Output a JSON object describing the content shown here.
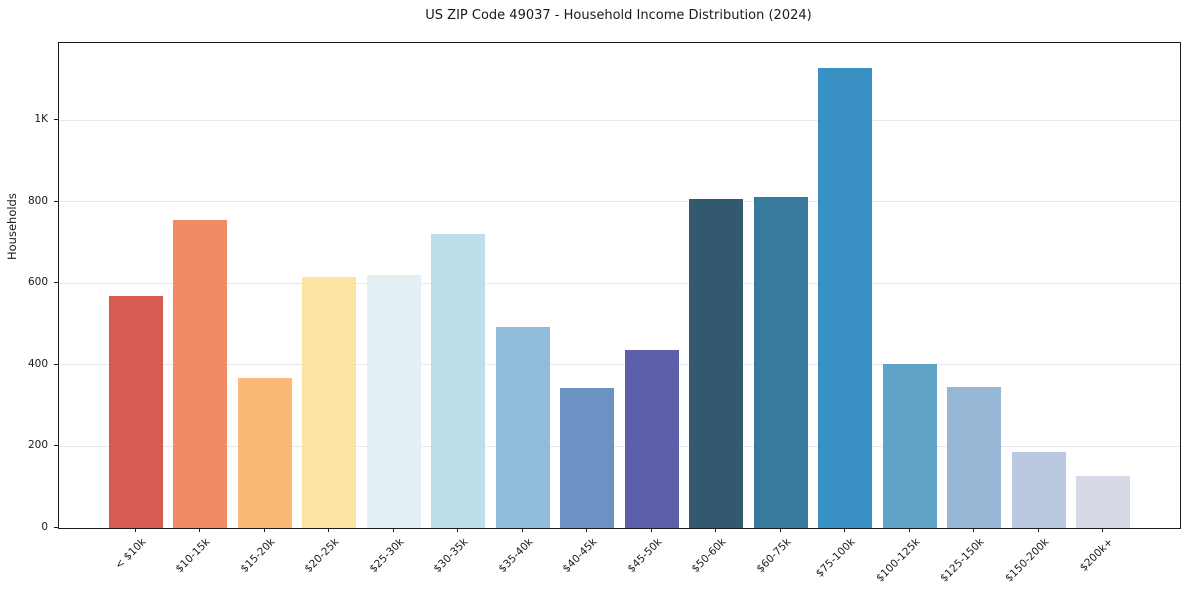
{
  "title": "US ZIP Code 49037 - Household Income Distribution (2024)",
  "ylabel": "Households",
  "chart_data": {
    "type": "bar",
    "title": "US ZIP Code 49037 - Household Income Distribution (2024)",
    "xlabel": "",
    "ylabel": "Households",
    "categories": [
      "< $10k",
      "$10-15k",
      "$15-20k",
      "$20-25k",
      "$25-30k",
      "$30-35k",
      "$35-40k",
      "$40-45k",
      "$45-50k",
      "$50-60k",
      "$60-75k",
      "$75-100k",
      "$100-125k",
      "$125-150k",
      "$150-200k",
      "$200k+"
    ],
    "values": [
      570,
      755,
      368,
      615,
      621,
      722,
      492,
      344,
      438,
      807,
      813,
      1128,
      403,
      345,
      187,
      128
    ],
    "bar_colors": [
      "#d65b52",
      "#f28a68",
      "#fbb877",
      "#fde3a2",
      "#e4f0f4",
      "#bfdeeb",
      "#90bcda",
      "#6b92c3",
      "#5c5ea9",
      "#33596e",
      "#38799e",
      "#3890c3",
      "#5fa4c8",
      "#96b7d4",
      "#bac8e0",
      "#d7d9e6"
    ],
    "ylim": [
      0,
      1190
    ],
    "ytick_values": [
      0,
      200,
      400,
      600,
      800,
      1000
    ],
    "ytick_labels": [
      "0",
      "200",
      "400",
      "600",
      "800",
      "1K"
    ],
    "xtick_rotation_deg": 45,
    "grid": "horizontal",
    "gridline_color": "#e8e8ec",
    "legend": "none",
    "background": "#ffffff",
    "axis_color": "#1a1a1a"
  }
}
